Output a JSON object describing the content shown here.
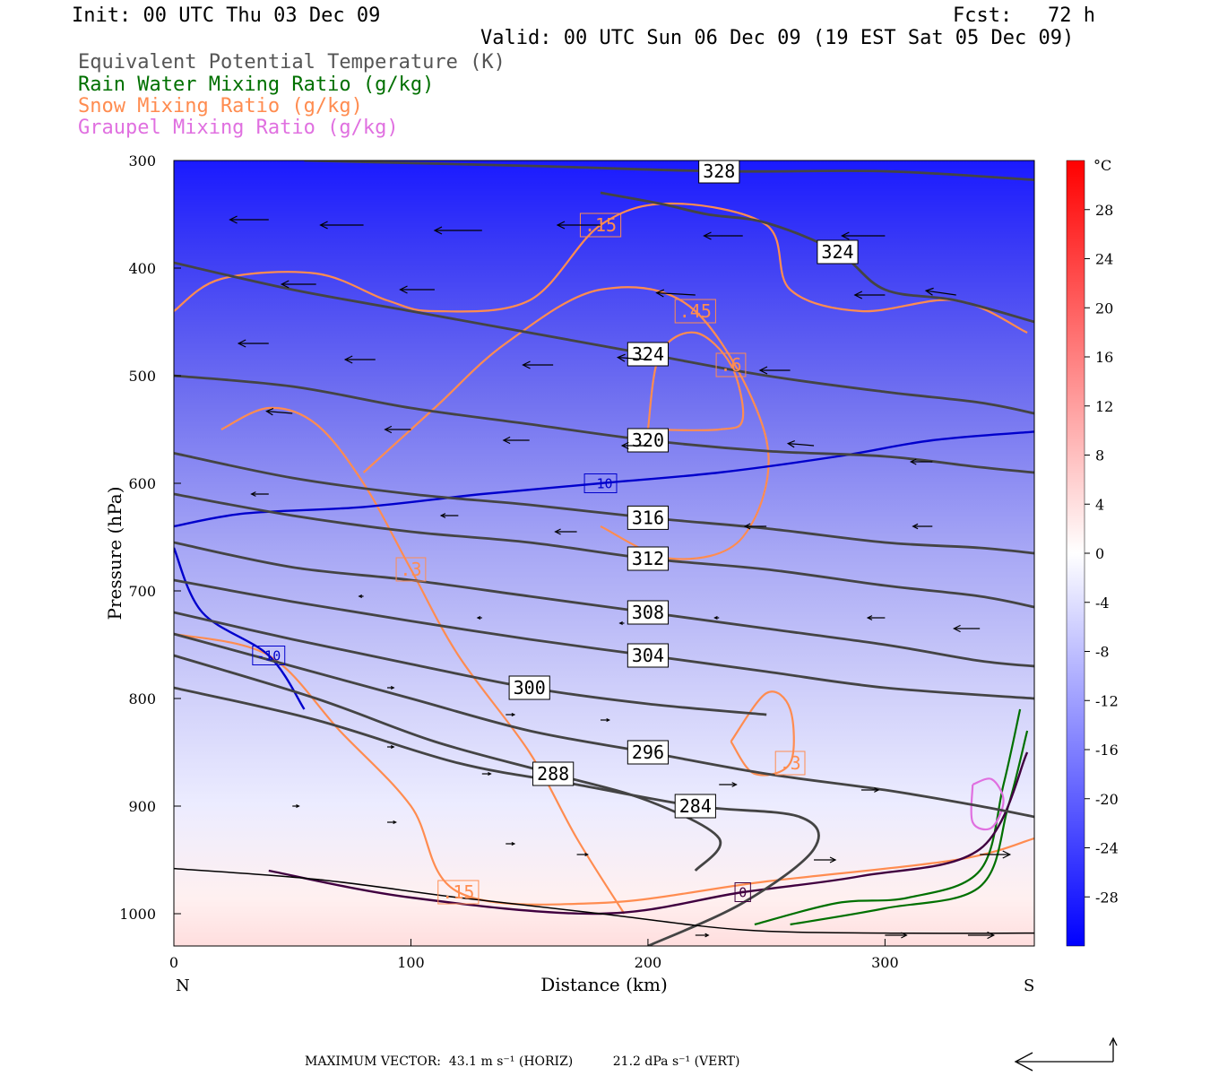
{
  "header": {
    "init": "Init: 00 UTC Thu 03 Dec 09",
    "fcst": "Fcst:   72 h",
    "valid": "Valid: 00 UTC Sun 06 Dec 09 (19 EST Sat 05 Dec 09)"
  },
  "legend": [
    {
      "label": "Equivalent Potential Temperature (K)",
      "color": "#555555"
    },
    {
      "label": "Rain Water Mixing Ratio (g/kg)",
      "color": "#007000"
    },
    {
      "label": "Snow Mixing Ratio (g/kg)",
      "color": "#ff8c50"
    },
    {
      "label": "Graupel Mixing Ratio (g/kg)",
      "color": "#e070e0"
    }
  ],
  "chart_data": {
    "type": "cross-section",
    "xlabel": "Distance (km)",
    "ylabel": "Pressure (hPa)",
    "xlim": [
      0,
      363
    ],
    "ylim": [
      300,
      1030
    ],
    "x_ticks": [
      "0",
      "100",
      "200",
      "300"
    ],
    "y_ticks": [
      "300",
      "400",
      "500",
      "600",
      "700",
      "800",
      "900",
      "1000"
    ],
    "left_end_label": "N",
    "right_end_label": "S",
    "colorbar": {
      "unit": "°C",
      "ticks": [
        "28",
        "24",
        "20",
        "16",
        "12",
        "8",
        "4",
        "0",
        "-4",
        "-8",
        "-12",
        "-16",
        "-20",
        "-24",
        "-28"
      ],
      "range": [
        -32,
        32
      ]
    },
    "theta_e_contours": [
      {
        "label": "328",
        "points": [
          [
            55,
            300
          ],
          [
            150,
            305
          ],
          [
            230,
            310
          ],
          [
            300,
            310
          ],
          [
            363,
            318
          ]
        ]
      },
      {
        "label": "324",
        "points": [
          [
            180,
            330
          ],
          [
            205,
            340
          ],
          [
            225,
            350
          ],
          [
            250,
            358
          ],
          [
            280,
            385
          ],
          [
            300,
            420
          ],
          [
            330,
            430
          ],
          [
            363,
            450
          ]
        ]
      },
      {
        "label": "324",
        "points": [
          [
            0,
            395
          ],
          [
            50,
            420
          ],
          [
            100,
            440
          ],
          [
            150,
            460
          ],
          [
            200,
            480
          ],
          [
            250,
            500
          ],
          [
            300,
            515
          ],
          [
            340,
            525
          ],
          [
            363,
            535
          ]
        ]
      },
      {
        "label": "320",
        "points": [
          [
            0,
            500
          ],
          [
            50,
            510
          ],
          [
            100,
            530
          ],
          [
            150,
            545
          ],
          [
            200,
            560
          ],
          [
            250,
            570
          ],
          [
            300,
            575
          ],
          [
            340,
            585
          ],
          [
            363,
            590
          ]
        ]
      },
      {
        "label": "316",
        "points": [
          [
            0,
            572
          ],
          [
            50,
            595
          ],
          [
            100,
            610
          ],
          [
            150,
            620
          ],
          [
            200,
            632
          ],
          [
            250,
            642
          ],
          [
            300,
            655
          ],
          [
            340,
            660
          ],
          [
            363,
            665
          ]
        ]
      },
      {
        "label": "312",
        "points": [
          [
            0,
            610
          ],
          [
            50,
            630
          ],
          [
            100,
            645
          ],
          [
            150,
            655
          ],
          [
            200,
            670
          ],
          [
            250,
            680
          ],
          [
            300,
            695
          ],
          [
            340,
            705
          ],
          [
            363,
            715
          ]
        ]
      },
      {
        "label": "308",
        "points": [
          [
            0,
            655
          ],
          [
            50,
            678
          ],
          [
            100,
            690
          ],
          [
            150,
            705
          ],
          [
            200,
            720
          ],
          [
            250,
            735
          ],
          [
            300,
            750
          ],
          [
            340,
            765
          ],
          [
            363,
            770
          ]
        ]
      },
      {
        "label": "304",
        "points": [
          [
            0,
            690
          ],
          [
            50,
            710
          ],
          [
            100,
            728
          ],
          [
            150,
            745
          ],
          [
            200,
            760
          ],
          [
            250,
            775
          ],
          [
            300,
            790
          ],
          [
            363,
            800
          ]
        ]
      },
      {
        "label": "300",
        "points": [
          [
            0,
            720
          ],
          [
            50,
            745
          ],
          [
            100,
            768
          ],
          [
            150,
            790
          ],
          [
            200,
            805
          ],
          [
            250,
            815
          ]
        ]
      },
      {
        "label": "296",
        "points": [
          [
            0,
            740
          ],
          [
            50,
            770
          ],
          [
            100,
            800
          ],
          [
            150,
            830
          ],
          [
            200,
            850
          ],
          [
            250,
            870
          ],
          [
            300,
            885
          ],
          [
            340,
            900
          ],
          [
            363,
            910
          ]
        ]
      },
      {
        "label": "288",
        "points": [
          [
            0,
            760
          ],
          [
            60,
            800
          ],
          [
            110,
            840
          ],
          [
            160,
            870
          ],
          [
            200,
            895
          ],
          [
            230,
            930
          ],
          [
            220,
            960
          ]
        ]
      },
      {
        "label": "284",
        "points": [
          [
            0,
            790
          ],
          [
            60,
            820
          ],
          [
            120,
            860
          ],
          [
            170,
            880
          ],
          [
            220,
            900
          ],
          [
            264,
            910
          ],
          [
            270,
            940
          ],
          [
            240,
            990
          ],
          [
            200,
            1030
          ]
        ]
      }
    ],
    "temperature_contours": [
      {
        "label": "-10",
        "points": [
          [
            0,
            640
          ],
          [
            30,
            628
          ],
          [
            80,
            622
          ],
          [
            130,
            610
          ],
          [
            180,
            600
          ],
          [
            230,
            590
          ],
          [
            280,
            575
          ],
          [
            320,
            560
          ],
          [
            363,
            552
          ]
        ]
      },
      {
        "label": "-10",
        "points": [
          [
            0,
            660
          ],
          [
            12,
            720
          ],
          [
            40,
            760
          ],
          [
            55,
            810
          ]
        ]
      },
      {
        "label": "0",
        "points": [
          [
            40,
            960
          ],
          [
            100,
            985
          ],
          [
            180,
            1000
          ],
          [
            240,
            980
          ],
          [
            290,
            965
          ],
          [
            340,
            940
          ],
          [
            360,
            850
          ]
        ]
      }
    ],
    "snow_contours": [
      {
        "label": ".15",
        "points": [
          [
            0,
            440
          ],
          [
            20,
            410
          ],
          [
            60,
            405
          ],
          [
            90,
            430
          ],
          [
            110,
            440
          ],
          [
            150,
            430
          ],
          [
            180,
            360
          ],
          [
            210,
            340
          ],
          [
            250,
            360
          ],
          [
            260,
            420
          ],
          [
            290,
            440
          ],
          [
            330,
            430
          ],
          [
            360,
            460
          ]
        ]
      },
      {
        "label": ".45",
        "points": [
          [
            80,
            590
          ],
          [
            110,
            530
          ],
          [
            140,
            470
          ],
          [
            180,
            420
          ],
          [
            220,
            440
          ],
          [
            250,
            560
          ],
          [
            240,
            650
          ],
          [
            210,
            670
          ],
          [
            180,
            640
          ]
        ]
      },
      {
        "label": ".6",
        "points": [
          [
            200,
            550
          ],
          [
            205,
            480
          ],
          [
            220,
            460
          ],
          [
            235,
            490
          ],
          [
            240,
            540
          ],
          [
            230,
            550
          ],
          [
            200,
            550
          ]
        ]
      },
      {
        "label": ".3",
        "points": [
          [
            20,
            550
          ],
          [
            40,
            530
          ],
          [
            60,
            545
          ],
          [
            80,
            600
          ],
          [
            100,
            680
          ],
          [
            120,
            760
          ],
          [
            150,
            850
          ],
          [
            170,
            930
          ],
          [
            190,
            1000
          ]
        ]
      },
      {
        "label": ".3",
        "points": [
          [
            235,
            840
          ],
          [
            250,
            795
          ],
          [
            260,
            810
          ],
          [
            260,
            860
          ],
          [
            245,
            870
          ],
          [
            235,
            840
          ]
        ]
      },
      {
        "label": ".15",
        "points": [
          [
            0,
            740
          ],
          [
            40,
            760
          ],
          [
            70,
            830
          ],
          [
            100,
            900
          ],
          [
            120,
            980
          ],
          [
            180,
            990
          ],
          [
            250,
            970
          ],
          [
            330,
            950
          ],
          [
            363,
            930
          ]
        ]
      }
    ],
    "rain_contours": [
      {
        "points": [
          [
            245,
            1010
          ],
          [
            280,
            990
          ],
          [
            310,
            985
          ],
          [
            340,
            960
          ],
          [
            350,
            880
          ],
          [
            357,
            810
          ]
        ]
      },
      {
        "points": [
          [
            260,
            1010
          ],
          [
            300,
            995
          ],
          [
            340,
            975
          ],
          [
            352,
            900
          ],
          [
            360,
            830
          ]
        ]
      }
    ],
    "graupel_contours": [
      {
        "points": [
          [
            337,
            880
          ],
          [
            345,
            875
          ],
          [
            350,
            895
          ],
          [
            345,
            920
          ],
          [
            337,
            915
          ],
          [
            337,
            880
          ]
        ]
      }
    ],
    "vectors": [
      {
        "x": 40,
        "p": 355,
        "u": -18,
        "w": 0
      },
      {
        "x": 80,
        "p": 360,
        "u": -20,
        "w": 0
      },
      {
        "x": 130,
        "p": 365,
        "u": -22,
        "w": 0
      },
      {
        "x": 180,
        "p": 360,
        "u": -20,
        "w": 0
      },
      {
        "x": 240,
        "p": 370,
        "u": -18,
        "w": 0
      },
      {
        "x": 300,
        "p": 370,
        "u": -20,
        "w": 0
      },
      {
        "x": 60,
        "p": 415,
        "u": -16,
        "w": 0
      },
      {
        "x": 110,
        "p": 420,
        "u": -16,
        "w": 0
      },
      {
        "x": 220,
        "p": 425,
        "u": -18,
        "w": 1
      },
      {
        "x": 300,
        "p": 425,
        "u": -14,
        "w": 0
      },
      {
        "x": 330,
        "p": 425,
        "u": -14,
        "w": 2
      },
      {
        "x": 40,
        "p": 470,
        "u": -14,
        "w": 0
      },
      {
        "x": 85,
        "p": 485,
        "u": -14,
        "w": 0
      },
      {
        "x": 160,
        "p": 490,
        "u": -14,
        "w": 0
      },
      {
        "x": 200,
        "p": 485,
        "u": -14,
        "w": 1
      },
      {
        "x": 260,
        "p": 495,
        "u": -14,
        "w": 0
      },
      {
        "x": 50,
        "p": 535,
        "u": -12,
        "w": 1
      },
      {
        "x": 100,
        "p": 550,
        "u": -12,
        "w": 0
      },
      {
        "x": 150,
        "p": 560,
        "u": -12,
        "w": 0
      },
      {
        "x": 200,
        "p": 565,
        "u": -12,
        "w": 0
      },
      {
        "x": 270,
        "p": 565,
        "u": -12,
        "w": 1
      },
      {
        "x": 320,
        "p": 580,
        "u": -10,
        "w": 0
      },
      {
        "x": 40,
        "p": 610,
        "u": -8,
        "w": 0
      },
      {
        "x": 120,
        "p": 630,
        "u": -8,
        "w": 0
      },
      {
        "x": 170,
        "p": 645,
        "u": -10,
        "w": 0
      },
      {
        "x": 250,
        "p": 640,
        "u": -10,
        "w": 0
      },
      {
        "x": 320,
        "p": 640,
        "u": -9,
        "w": 0
      },
      {
        "x": 80,
        "p": 705,
        "u": -2,
        "w": 0
      },
      {
        "x": 130,
        "p": 725,
        "u": -2,
        "w": 0
      },
      {
        "x": 190,
        "p": 730,
        "u": -2,
        "w": 0
      },
      {
        "x": 230,
        "p": 725,
        "u": -2,
        "w": 0
      },
      {
        "x": 300,
        "p": 725,
        "u": -8,
        "w": 0
      },
      {
        "x": 340,
        "p": 735,
        "u": -12,
        "w": 0
      },
      {
        "x": 90,
        "p": 790,
        "u": 3,
        "w": 0
      },
      {
        "x": 140,
        "p": 815,
        "u": 4,
        "w": 0
      },
      {
        "x": 180,
        "p": 820,
        "u": 4,
        "w": 0
      },
      {
        "x": 90,
        "p": 845,
        "u": 3,
        "w": 0
      },
      {
        "x": 130,
        "p": 870,
        "u": 4,
        "w": 0
      },
      {
        "x": 230,
        "p": 880,
        "u": 8,
        "w": 0
      },
      {
        "x": 290,
        "p": 885,
        "u": 8,
        "w": 0
      },
      {
        "x": 50,
        "p": 900,
        "u": 3,
        "w": 0
      },
      {
        "x": 90,
        "p": 915,
        "u": 4,
        "w": 0
      },
      {
        "x": 140,
        "p": 935,
        "u": 4,
        "w": 0
      },
      {
        "x": 170,
        "p": 945,
        "u": 5,
        "w": 0
      },
      {
        "x": 270,
        "p": 950,
        "u": 10,
        "w": 0
      },
      {
        "x": 340,
        "p": 945,
        "u": 14,
        "w": 0
      },
      {
        "x": 220,
        "p": 1020,
        "u": 6,
        "w": 0
      },
      {
        "x": 300,
        "p": 1020,
        "u": 10,
        "w": 0
      },
      {
        "x": 335,
        "p": 1020,
        "u": 12,
        "w": 0
      }
    ]
  },
  "footer": {
    "text": "MAXIMUM VECTOR:  43.1 m s⁻¹ (HORIZ)          21.2 dPa s⁻¹ (VERT)"
  }
}
